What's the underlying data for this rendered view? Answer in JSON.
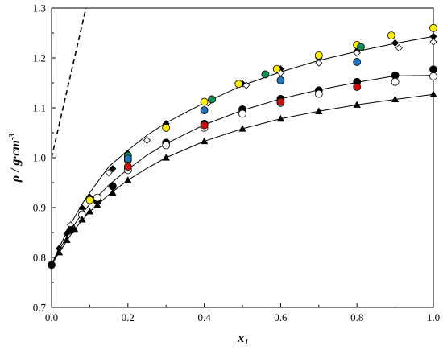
{
  "chart_data": {
    "type": "scatter",
    "xlabel": "x",
    "xlabel_sub": "1",
    "ylabel": "ρ / g·cm",
    "ylabel_sup": "-3",
    "xlim": [
      0.0,
      1.0
    ],
    "ylim": [
      0.7,
      1.3
    ],
    "x_ticks": [
      "0.0",
      "0.2",
      "0.4",
      "0.6",
      "0.8",
      "1.0"
    ],
    "y_ticks": [
      "0.7",
      "0.8",
      "0.9",
      "1.0",
      "1.1",
      "1.2",
      "1.3"
    ],
    "grid": false,
    "legend": "none",
    "series": [
      {
        "marker": "diamond",
        "fill": "#000000",
        "x": [
          0.02,
          0.04,
          0.08,
          0.1,
          0.16,
          0.2,
          0.3,
          0.5,
          0.6,
          0.7,
          0.8,
          0.9,
          1.0
        ],
        "y": [
          0.818,
          0.848,
          0.899,
          0.921,
          0.978,
          1.008,
          1.068,
          1.148,
          1.178,
          1.2,
          1.214,
          1.23,
          1.243
        ]
      },
      {
        "marker": "diamond-open",
        "fill": "#ffffff",
        "x": [
          0.05,
          0.08,
          0.15,
          0.25,
          0.41,
          0.51,
          0.6,
          0.7,
          0.8,
          0.91,
          1.0
        ],
        "y": [
          0.865,
          0.89,
          0.97,
          1.035,
          1.11,
          1.145,
          1.17,
          1.19,
          1.21,
          1.22,
          1.232
        ]
      },
      {
        "marker": "circle",
        "fill": "#000000",
        "x": [
          0.0,
          0.05,
          0.12,
          0.16,
          0.2,
          0.3,
          0.4,
          0.5,
          0.6,
          0.7,
          0.8,
          0.9,
          1.0
        ],
        "y": [
          0.785,
          0.855,
          0.913,
          0.943,
          0.976,
          1.03,
          1.068,
          1.097,
          1.118,
          1.135,
          1.152,
          1.165,
          1.177
        ]
      },
      {
        "marker": "circle-open",
        "fill": "#ffffff",
        "x": [
          0.08,
          0.12,
          0.2,
          0.3,
          0.4,
          0.5,
          0.6,
          0.7,
          0.9,
          1.0
        ],
        "y": [
          0.885,
          0.92,
          0.975,
          1.025,
          1.06,
          1.088,
          1.11,
          1.128,
          1.152,
          1.163
        ]
      },
      {
        "marker": "triangle",
        "fill": "#000000",
        "x": [
          0.02,
          0.04,
          0.06,
          0.08,
          0.1,
          0.12,
          0.16,
          0.2,
          0.3,
          0.4,
          0.5,
          0.6,
          0.7,
          0.8,
          0.9,
          1.0
        ],
        "y": [
          0.81,
          0.835,
          0.857,
          0.876,
          0.892,
          0.905,
          0.93,
          0.955,
          1.0,
          1.033,
          1.058,
          1.078,
          1.093,
          1.106,
          1.117,
          1.127
        ]
      },
      {
        "marker": "circle",
        "fill": "#ffee00",
        "x": [
          0.1,
          0.2,
          0.3,
          0.4,
          0.49,
          0.59,
          0.7,
          0.8,
          0.89,
          1.0
        ],
        "y": [
          0.915,
          0.995,
          1.06,
          1.112,
          1.148,
          1.178,
          1.205,
          1.226,
          1.245,
          1.26
        ]
      },
      {
        "marker": "circle",
        "fill": "#1a8c55",
        "x": [
          0.2,
          0.42,
          0.56,
          0.81
        ],
        "y": [
          1.004,
          1.117,
          1.167,
          1.222
        ]
      },
      {
        "marker": "circle",
        "fill": "#1f77c0",
        "x": [
          0.2,
          0.4,
          0.6,
          0.8
        ],
        "y": [
          0.998,
          1.095,
          1.155,
          1.192
        ]
      },
      {
        "marker": "circle",
        "fill": "#cc1111",
        "x": [
          0.2,
          0.4,
          0.6,
          0.8
        ],
        "y": [
          0.982,
          1.065,
          1.112,
          1.142
        ]
      }
    ],
    "curves": [
      {
        "style": "solid",
        "x": [
          0.0,
          0.02,
          0.05,
          0.08,
          0.1,
          0.15,
          0.2,
          0.25,
          0.3,
          0.4,
          0.5,
          0.6,
          0.7,
          0.8,
          0.9,
          1.0
        ],
        "y": [
          0.785,
          0.82,
          0.867,
          0.907,
          0.93,
          0.982,
          1.015,
          1.045,
          1.07,
          1.11,
          1.145,
          1.172,
          1.195,
          1.213,
          1.229,
          1.243
        ]
      },
      {
        "style": "solid",
        "x": [
          0.0,
          0.02,
          0.05,
          0.08,
          0.1,
          0.15,
          0.2,
          0.25,
          0.3,
          0.4,
          0.5,
          0.6,
          0.7,
          0.8,
          0.9,
          1.0
        ],
        "y": [
          0.785,
          0.815,
          0.855,
          0.888,
          0.907,
          0.945,
          0.977,
          1.005,
          1.028,
          1.066,
          1.095,
          1.118,
          1.136,
          1.151,
          1.164,
          1.165
        ]
      },
      {
        "style": "solid",
        "x": [
          0.0,
          0.02,
          0.05,
          0.08,
          0.1,
          0.15,
          0.2,
          0.25,
          0.3,
          0.4,
          0.5,
          0.6,
          0.7,
          0.8,
          0.9,
          1.0
        ],
        "y": [
          0.785,
          0.81,
          0.845,
          0.875,
          0.892,
          0.926,
          0.955,
          0.979,
          1.0,
          1.033,
          1.058,
          1.078,
          1.093,
          1.106,
          1.117,
          1.127
        ]
      },
      {
        "style": "dashed",
        "x": [
          0.0,
          0.09
        ],
        "y": [
          1.0,
          1.3
        ]
      }
    ]
  }
}
